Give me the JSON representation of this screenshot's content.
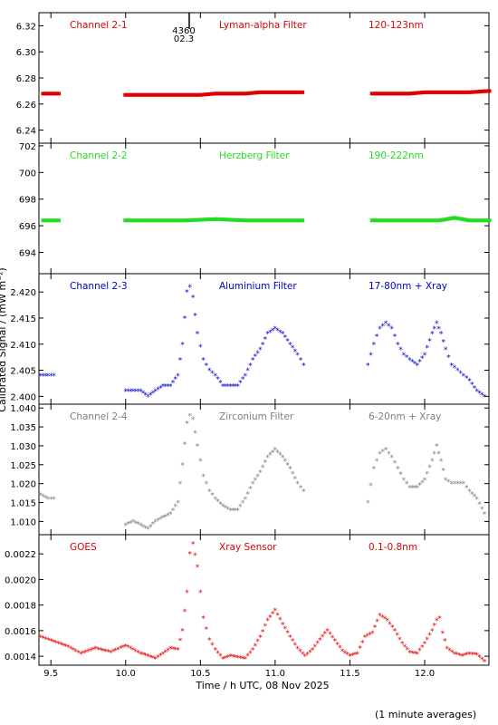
{
  "figure": {
    "ylabel": "Calibrated Signal / (mW m⁻²)",
    "xlabel": "Time / h UTC, 08 Nov 2025",
    "footnote": "(1 minute averages)",
    "marker_labels": [
      "4360",
      "02.3"
    ]
  },
  "chart_data": [
    {
      "type": "scatter",
      "channel": "Channel 2-1",
      "filter": "Lyman-alpha Filter",
      "band": "120-123nm",
      "color": "#e00000",
      "xlim": [
        9.42,
        12.43
      ],
      "ylim": [
        6.23,
        6.33
      ],
      "yticks": [
        "6.24",
        "6.26",
        "6.28",
        "6.30",
        "6.32"
      ],
      "x": [
        9.45,
        9.5,
        9.55,
        10.0,
        10.1,
        10.2,
        10.3,
        10.4,
        10.5,
        10.6,
        10.7,
        10.8,
        10.9,
        11.0,
        11.1,
        11.18,
        11.65,
        11.8,
        11.9,
        12.0,
        12.1,
        12.2,
        12.3,
        12.43
      ],
      "y": [
        6.268,
        6.268,
        6.268,
        6.267,
        6.267,
        6.267,
        6.267,
        6.267,
        6.267,
        6.268,
        6.268,
        6.268,
        6.269,
        6.269,
        6.269,
        6.269,
        6.268,
        6.268,
        6.268,
        6.269,
        6.269,
        6.269,
        6.269,
        6.27
      ]
    },
    {
      "type": "scatter",
      "channel": "Channel 2-2",
      "filter": "Herzberg Filter",
      "band": "190-222nm",
      "color": "#22dd22",
      "xlim": [
        9.42,
        12.43
      ],
      "ylim": [
        692.4,
        702.2
      ],
      "yticks": [
        "694",
        "696",
        "698",
        "700",
        "702"
      ],
      "x": [
        9.45,
        9.5,
        9.55,
        10.0,
        10.2,
        10.4,
        10.6,
        10.8,
        11.0,
        11.18,
        11.65,
        11.8,
        12.0,
        12.1,
        12.2,
        12.3,
        12.43
      ],
      "y": [
        696.4,
        696.4,
        696.4,
        696.4,
        696.4,
        696.4,
        696.5,
        696.4,
        696.4,
        696.4,
        696.4,
        696.4,
        696.4,
        696.4,
        696.6,
        696.4,
        696.4
      ]
    },
    {
      "type": "scatter",
      "channel": "Channel 2-3",
      "filter": "Aluminium Filter",
      "band": "17-80nm + Xray",
      "color": "#0000cc",
      "xlim": [
        9.42,
        12.43
      ],
      "ylim": [
        2.3985,
        2.4235
      ],
      "yticks": [
        "2.400",
        "2.405",
        "2.410",
        "2.415",
        "2.420"
      ],
      "x": [
        9.43,
        9.48,
        9.52,
        10.0,
        10.05,
        10.1,
        10.15,
        10.2,
        10.25,
        10.3,
        10.35,
        10.38,
        10.41,
        10.43,
        10.45,
        10.48,
        10.52,
        10.56,
        10.6,
        10.65,
        10.7,
        10.75,
        10.8,
        10.85,
        10.9,
        10.95,
        11.0,
        11.05,
        11.1,
        11.15,
        11.19,
        11.62,
        11.66,
        11.7,
        11.74,
        11.78,
        11.82,
        11.86,
        11.9,
        11.95,
        12.0,
        12.05,
        12.08,
        12.11,
        12.14,
        12.18,
        12.22,
        12.26,
        12.3,
        12.35,
        12.4
      ],
      "y": [
        2.404,
        2.404,
        2.404,
        2.401,
        2.401,
        2.401,
        2.4,
        2.401,
        2.402,
        2.402,
        2.404,
        2.41,
        2.42,
        2.421,
        2.419,
        2.412,
        2.407,
        2.405,
        2.404,
        2.402,
        2.402,
        2.402,
        2.404,
        2.407,
        2.409,
        2.412,
        2.413,
        2.412,
        2.41,
        2.408,
        2.406,
        2.406,
        2.41,
        2.413,
        2.414,
        2.413,
        2.41,
        2.408,
        2.407,
        2.406,
        2.408,
        2.412,
        2.414,
        2.412,
        2.409,
        2.406,
        2.405,
        2.404,
        2.403,
        2.401,
        2.4
      ]
    },
    {
      "type": "scatter",
      "channel": "Channel 2-4",
      "filter": "Zirconium Filter",
      "band": "6-20nm + Xray",
      "color": "#7f7f7f",
      "xlim": [
        9.42,
        12.43
      ],
      "ylim": [
        1.0065,
        1.041
      ],
      "yticks": [
        "1.010",
        "1.015",
        "1.020",
        "1.025",
        "1.030",
        "1.035",
        "1.040"
      ],
      "x": [
        9.43,
        9.48,
        9.52,
        10.0,
        10.05,
        10.1,
        10.15,
        10.2,
        10.25,
        10.3,
        10.35,
        10.38,
        10.41,
        10.43,
        10.45,
        10.48,
        10.52,
        10.56,
        10.6,
        10.65,
        10.7,
        10.75,
        10.8,
        10.85,
        10.9,
        10.95,
        11.0,
        11.05,
        11.1,
        11.15,
        11.19,
        11.62,
        11.66,
        11.7,
        11.74,
        11.78,
        11.82,
        11.86,
        11.9,
        11.95,
        12.0,
        12.05,
        12.08,
        12.11,
        12.14,
        12.18,
        12.22,
        12.26,
        12.3,
        12.35,
        12.4
      ],
      "y": [
        1.017,
        1.016,
        1.016,
        1.009,
        1.01,
        1.009,
        1.008,
        1.01,
        1.011,
        1.012,
        1.015,
        1.025,
        1.036,
        1.038,
        1.037,
        1.03,
        1.022,
        1.018,
        1.016,
        1.014,
        1.013,
        1.013,
        1.016,
        1.02,
        1.023,
        1.027,
        1.029,
        1.027,
        1.024,
        1.02,
        1.018,
        1.015,
        1.024,
        1.028,
        1.029,
        1.027,
        1.024,
        1.021,
        1.019,
        1.019,
        1.021,
        1.026,
        1.03,
        1.026,
        1.021,
        1.02,
        1.02,
        1.02,
        1.018,
        1.016,
        1.012
      ]
    },
    {
      "type": "scatter",
      "channel": "GOES",
      "filter": "Xray Sensor",
      "band": "0.1-0.8nm",
      "color": "#e00000",
      "xlim": [
        9.42,
        12.43
      ],
      "ylim": [
        0.00133,
        0.00235
      ],
      "yticks": [
        "0.0014",
        "0.0016",
        "0.0018",
        "0.0020",
        "0.0022"
      ],
      "x": [
        9.43,
        9.5,
        9.6,
        9.7,
        9.8,
        9.9,
        10.0,
        10.1,
        10.2,
        10.25,
        10.3,
        10.35,
        10.38,
        10.41,
        10.43,
        10.45,
        10.48,
        10.52,
        10.56,
        10.6,
        10.65,
        10.7,
        10.8,
        10.85,
        10.9,
        10.95,
        11.0,
        11.05,
        11.1,
        11.15,
        11.2,
        11.25,
        11.3,
        11.35,
        11.4,
        11.45,
        11.5,
        11.55,
        11.6,
        11.65,
        11.7,
        11.75,
        11.8,
        11.85,
        11.9,
        11.95,
        12.0,
        12.05,
        12.08,
        12.1,
        12.12,
        12.15,
        12.2,
        12.25,
        12.3,
        12.35,
        12.4
      ],
      "y": [
        0.00155,
        0.00152,
        0.00148,
        0.00142,
        0.00146,
        0.00143,
        0.00148,
        0.00142,
        0.00138,
        0.00142,
        0.00146,
        0.00145,
        0.0016,
        0.0019,
        0.0022,
        0.00228,
        0.0021,
        0.0017,
        0.00153,
        0.00145,
        0.00138,
        0.0014,
        0.00138,
        0.00145,
        0.00155,
        0.00168,
        0.00176,
        0.00165,
        0.00155,
        0.00146,
        0.0014,
        0.00145,
        0.00153,
        0.0016,
        0.00152,
        0.00144,
        0.0014,
        0.00142,
        0.00155,
        0.00158,
        0.00172,
        0.00168,
        0.0016,
        0.0015,
        0.00143,
        0.00142,
        0.0015,
        0.0016,
        0.00168,
        0.0017,
        0.00158,
        0.00146,
        0.00142,
        0.0014,
        0.00142,
        0.00141,
        0.00136
      ]
    }
  ],
  "xaxis": {
    "ticks": [
      9.5,
      10.0,
      10.5,
      11.0,
      11.5,
      12.0
    ],
    "tick_labels": [
      "9.5",
      "10.0",
      "10.5",
      "11.0",
      "11.5",
      "12.0"
    ]
  }
}
